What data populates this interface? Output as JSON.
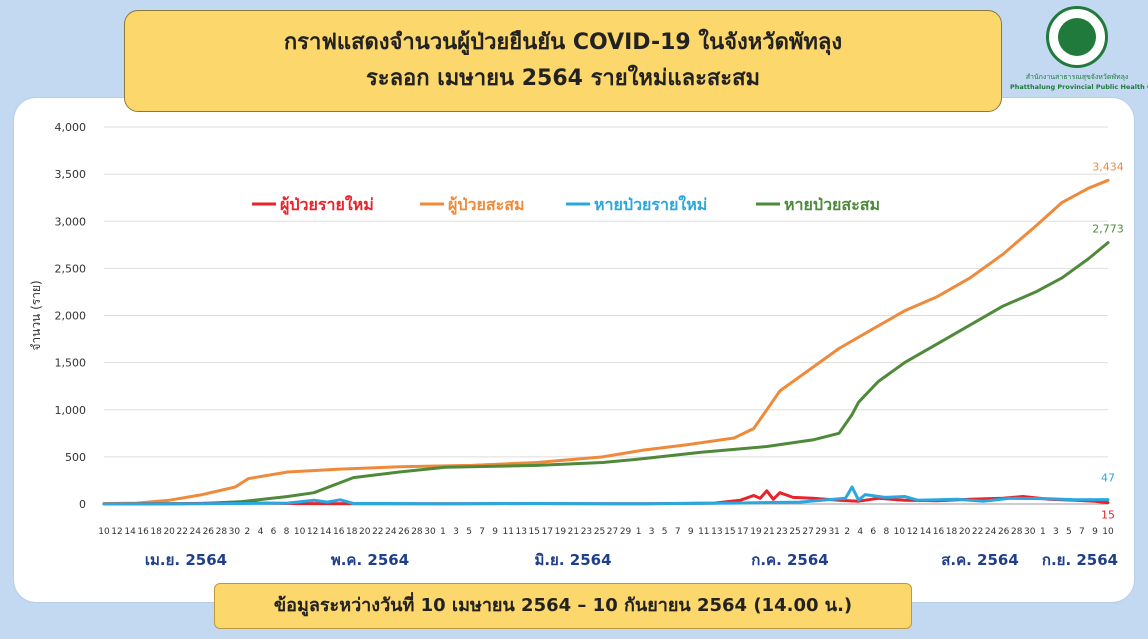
{
  "header": {
    "title_line1": "กราฟแสดงจำนวนผู้ป่วยยืนยัน COVID-19 ในจังหวัดพัทลุง",
    "title_line2": "ระลอก เมษายน 2564 รายใหม่และสะสม"
  },
  "logo": {
    "org_thai": "สำนักงานสาธารณสุขจังหวัดพัทลุง",
    "org_eng": "Phatthalung Provincial Public Health Office"
  },
  "footer": {
    "note": "ข้อมูลระหว่างวันที่ 10 เมษายน 2564 – 10 กันยายน 2564 (14.00 น.)"
  },
  "chart_data": {
    "type": "line",
    "title": "กราฟแสดงจำนวนผู้ป่วยยืนยัน COVID-19 ในจังหวัดพัทลุง ระลอก เมษายน 2564 รายใหม่และสะสม",
    "xlabel": "",
    "ylabel": "จำนวน (ราย)",
    "ylim": [
      0,
      4000
    ],
    "yticks": [
      "0",
      "500",
      "1,000",
      "1,500",
      "2,000",
      "2,500",
      "3,000",
      "3,500",
      "4,000"
    ],
    "grid": true,
    "legend_position": "top",
    "x_day_labels": [
      "10",
      "12",
      "14",
      "16",
      "18",
      "20",
      "22",
      "24",
      "26",
      "28",
      "30",
      "2",
      "4",
      "6",
      "8",
      "10",
      "12",
      "14",
      "16",
      "18",
      "20",
      "22",
      "24",
      "26",
      "28",
      "30",
      "1",
      "3",
      "5",
      "7",
      "9",
      "11",
      "13",
      "15",
      "17",
      "19",
      "21",
      "23",
      "25",
      "27",
      "29",
      "1",
      "3",
      "5",
      "7",
      "9",
      "11",
      "13",
      "15",
      "17",
      "19",
      "21",
      "23",
      "25",
      "27",
      "29",
      "31",
      "2",
      "4",
      "6",
      "8",
      "10",
      "12",
      "14",
      "16",
      "18",
      "20",
      "22",
      "24",
      "26",
      "28",
      "30",
      "1",
      "3",
      "5",
      "7",
      "9",
      "10"
    ],
    "month_labels": [
      {
        "label": "เม.ย. 2564",
        "start": "2021-04-10"
      },
      {
        "label": "พ.ค. 2564",
        "start": "2021-05-01"
      },
      {
        "label": "มิ.ย. 2564",
        "start": "2021-06-01"
      },
      {
        "label": "ก.ค. 2564",
        "start": "2021-07-01"
      },
      {
        "label": "ส.ค. 2564",
        "start": "2021-08-01"
      },
      {
        "label": "ก.ย. 2564",
        "start": "2021-09-01"
      }
    ],
    "date_range": [
      "2021-04-10",
      "2021-09-10"
    ],
    "series": [
      {
        "name": "ผู้ป่วยรายใหม่",
        "color": "#e8232a",
        "points": [
          [
            "2021-04-10",
            1
          ],
          [
            "2021-04-20",
            3
          ],
          [
            "2021-05-01",
            12
          ],
          [
            "2021-05-10",
            4
          ],
          [
            "2021-05-20",
            3
          ],
          [
            "2021-06-01",
            2
          ],
          [
            "2021-06-15",
            4
          ],
          [
            "2021-07-01",
            3
          ],
          [
            "2021-07-12",
            10
          ],
          [
            "2021-07-16",
            40
          ],
          [
            "2021-07-18",
            90
          ],
          [
            "2021-07-19",
            60
          ],
          [
            "2021-07-20",
            140
          ],
          [
            "2021-07-21",
            50
          ],
          [
            "2021-07-22",
            120
          ],
          [
            "2021-07-24",
            70
          ],
          [
            "2021-07-27",
            60
          ],
          [
            "2021-07-31",
            40
          ],
          [
            "2021-08-03",
            30
          ],
          [
            "2021-08-06",
            60
          ],
          [
            "2021-08-10",
            40
          ],
          [
            "2021-08-15",
            35
          ],
          [
            "2021-08-20",
            50
          ],
          [
            "2021-08-25",
            60
          ],
          [
            "2021-08-28",
            80
          ],
          [
            "2021-09-01",
            50
          ],
          [
            "2021-09-05",
            40
          ],
          [
            "2021-09-08",
            30
          ],
          [
            "2021-09-10",
            15
          ]
        ],
        "end_label": "15"
      },
      {
        "name": "ผู้ป่วยสะสม",
        "color": "#ef8a3a",
        "points": [
          [
            "2021-04-10",
            5
          ],
          [
            "2021-04-15",
            10
          ],
          [
            "2021-04-20",
            40
          ],
          [
            "2021-04-25",
            100
          ],
          [
            "2021-04-30",
            180
          ],
          [
            "2021-05-02",
            270
          ],
          [
            "2021-05-08",
            340
          ],
          [
            "2021-05-16",
            370
          ],
          [
            "2021-05-25",
            395
          ],
          [
            "2021-06-05",
            410
          ],
          [
            "2021-06-15",
            440
          ],
          [
            "2021-06-25",
            500
          ],
          [
            "2021-07-01",
            570
          ],
          [
            "2021-07-08",
            630
          ],
          [
            "2021-07-15",
            700
          ],
          [
            "2021-07-18",
            800
          ],
          [
            "2021-07-20",
            1000
          ],
          [
            "2021-07-22",
            1200
          ],
          [
            "2021-07-26",
            1400
          ],
          [
            "2021-07-31",
            1650
          ],
          [
            "2021-08-05",
            1850
          ],
          [
            "2021-08-10",
            2050
          ],
          [
            "2021-08-15",
            2200
          ],
          [
            "2021-08-20",
            2400
          ],
          [
            "2021-08-25",
            2650
          ],
          [
            "2021-08-30",
            2950
          ],
          [
            "2021-09-03",
            3200
          ],
          [
            "2021-09-07",
            3350
          ],
          [
            "2021-09-10",
            3434
          ]
        ],
        "end_label": "3,434"
      },
      {
        "name": "หายป่วยรายใหม่",
        "color": "#2aa7e0",
        "points": [
          [
            "2021-04-10",
            0
          ],
          [
            "2021-04-25",
            2
          ],
          [
            "2021-05-08",
            10
          ],
          [
            "2021-05-12",
            40
          ],
          [
            "2021-05-14",
            20
          ],
          [
            "2021-05-16",
            45
          ],
          [
            "2021-05-18",
            5
          ],
          [
            "2021-06-01",
            3
          ],
          [
            "2021-06-15",
            5
          ],
          [
            "2021-07-01",
            3
          ],
          [
            "2021-07-15",
            10
          ],
          [
            "2021-07-25",
            20
          ],
          [
            "2021-08-01",
            60
          ],
          [
            "2021-08-02",
            180
          ],
          [
            "2021-08-03",
            40
          ],
          [
            "2021-08-04",
            100
          ],
          [
            "2021-08-07",
            70
          ],
          [
            "2021-08-10",
            80
          ],
          [
            "2021-08-12",
            40
          ],
          [
            "2021-08-18",
            50
          ],
          [
            "2021-08-22",
            30
          ],
          [
            "2021-08-26",
            60
          ],
          [
            "2021-09-01",
            55
          ],
          [
            "2021-09-05",
            45
          ],
          [
            "2021-09-10",
            47
          ]
        ],
        "end_label": "47"
      },
      {
        "name": "หายป่วยสะสม",
        "color": "#4e8a3a",
        "points": [
          [
            "2021-04-10",
            0
          ],
          [
            "2021-04-25",
            5
          ],
          [
            "2021-05-01",
            25
          ],
          [
            "2021-05-08",
            80
          ],
          [
            "2021-05-12",
            120
          ],
          [
            "2021-05-15",
            200
          ],
          [
            "2021-05-18",
            280
          ],
          [
            "2021-05-25",
            340
          ],
          [
            "2021-06-01",
            390
          ],
          [
            "2021-06-15",
            410
          ],
          [
            "2021-06-25",
            440
          ],
          [
            "2021-07-01",
            480
          ],
          [
            "2021-07-10",
            550
          ],
          [
            "2021-07-20",
            610
          ],
          [
            "2021-07-27",
            680
          ],
          [
            "2021-07-31",
            750
          ],
          [
            "2021-08-02",
            950
          ],
          [
            "2021-08-03",
            1080
          ],
          [
            "2021-08-06",
            1300
          ],
          [
            "2021-08-10",
            1500
          ],
          [
            "2021-08-15",
            1700
          ],
          [
            "2021-08-20",
            1900
          ],
          [
            "2021-08-25",
            2100
          ],
          [
            "2021-08-30",
            2250
          ],
          [
            "2021-09-03",
            2400
          ],
          [
            "2021-09-07",
            2600
          ],
          [
            "2021-09-10",
            2773
          ]
        ],
        "end_label": "2,773"
      }
    ]
  }
}
